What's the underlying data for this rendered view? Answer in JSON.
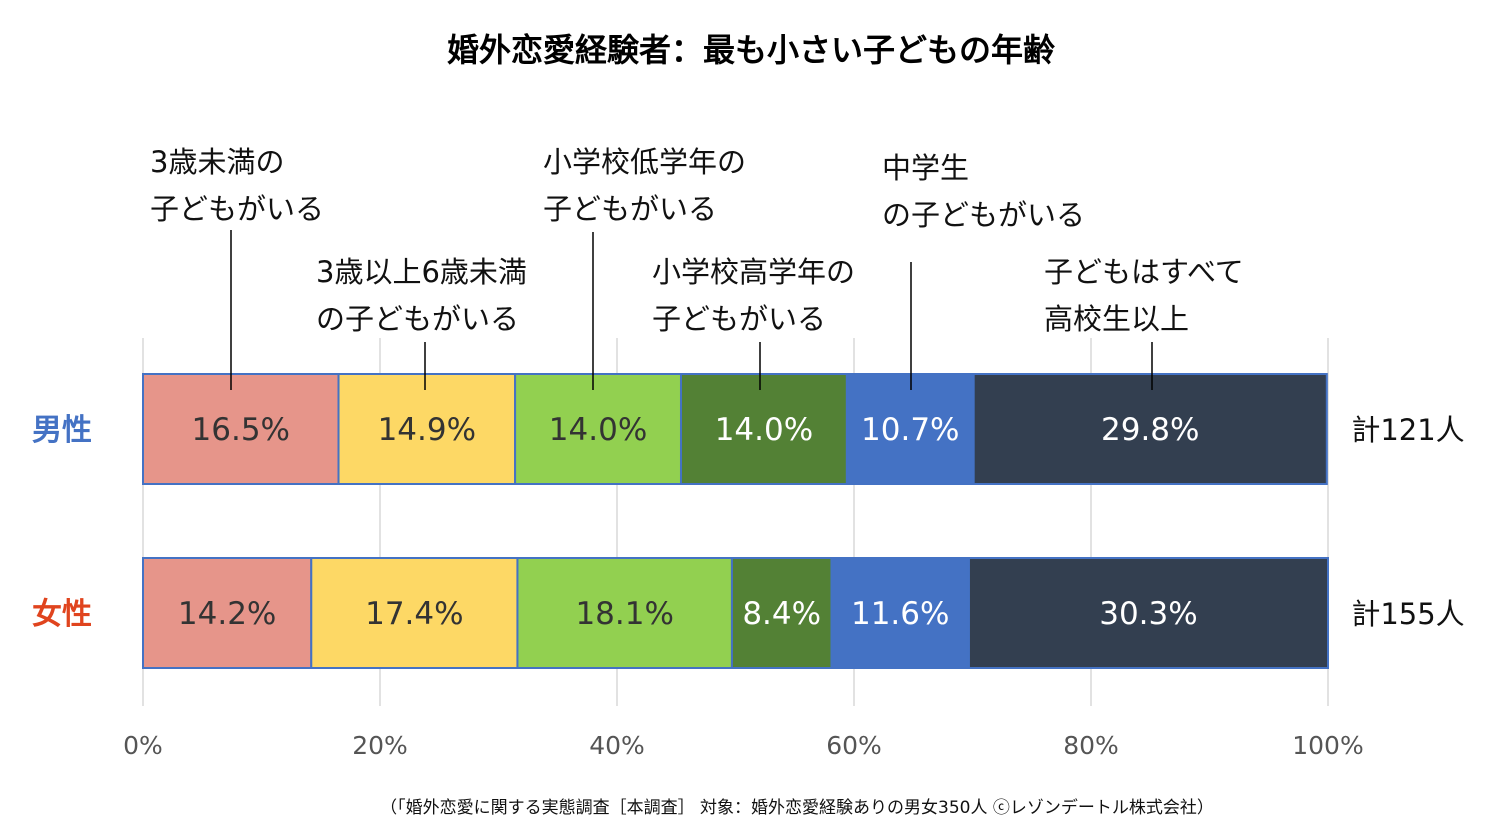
{
  "colors": {
    "seg": [
      "#e6958a",
      "#fdd865",
      "#92d050",
      "#538135",
      "#4472c4",
      "#333f50"
    ],
    "label_dark": "#333333",
    "label_light": "#ffffff",
    "male": "#4472c4",
    "female": "#e0441e",
    "grid": "#d9d9d9",
    "border": "#4472c4"
  },
  "chart_data": {
    "type": "bar",
    "orientation": "horizontal-stacked-100",
    "title": "婚外恋愛経験者：最も小さい子どもの年齢",
    "categories": [
      "3歳未満の子どもがいる",
      "3歳以上6歳未満の子どもがいる",
      "小学校低学年の子どもがいる",
      "小学校高学年の子どもがいる",
      "中学生の子どもがいる",
      "子どもはすべて高校生以上"
    ],
    "category_lines": [
      [
        "3歳未満の",
        "子どもがいる"
      ],
      [
        "3歳以上6歳未満",
        "の子どもがいる"
      ],
      [
        "小学校低学年の",
        "子どもがいる"
      ],
      [
        "小学校高学年の",
        "子どもがいる"
      ],
      [
        "中学生",
        "の子どもがいる"
      ],
      [
        "子どもはすべて",
        "高校生以上"
      ]
    ],
    "series": [
      {
        "name": "男性",
        "values": [
          16.5,
          14.9,
          14.0,
          14.0,
          10.7,
          29.8
        ],
        "value_labels": [
          "16.5%",
          "14.9%",
          "14.0%",
          "14.0%",
          "10.7%",
          "29.8%"
        ],
        "total_label": "計121人"
      },
      {
        "name": "女性",
        "values": [
          14.2,
          17.4,
          18.1,
          8.4,
          11.6,
          30.3
        ],
        "value_labels": [
          "14.2%",
          "17.4%",
          "18.1%",
          "8.4%",
          "11.6%",
          "30.3%"
        ],
        "total_label": "計155人"
      }
    ],
    "xlim": [
      0,
      100
    ],
    "xticks": [
      0,
      20,
      40,
      60,
      80,
      100
    ],
    "xtick_labels": [
      "0%",
      "20%",
      "40%",
      "60%",
      "80%",
      "100%"
    ],
    "grid": true,
    "source": "（「婚外恋愛に関する実態調査［本調査］ 対象：婚外恋愛経験ありの男女350人 ⓒレゾンデートル株式会社）"
  }
}
